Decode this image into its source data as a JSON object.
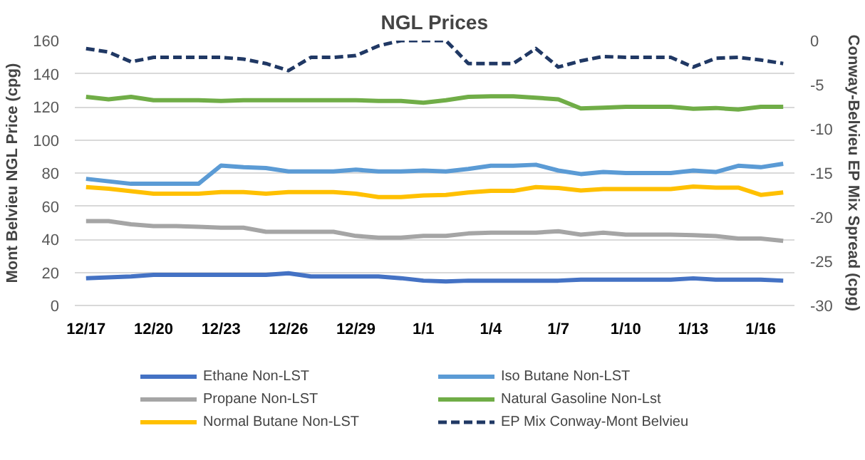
{
  "chart_data": {
    "type": "line",
    "title": "NGL Prices",
    "ylabel": "Mont Belvieu NGL Price (cpg)",
    "y2label": "Conway-Belvieu EP Mix Spread (cpg)",
    "categories": [
      "12/17",
      null,
      null,
      "12/20",
      null,
      null,
      "12/23",
      null,
      null,
      "12/26",
      null,
      null,
      "12/29",
      null,
      null,
      "1/1",
      null,
      null,
      "1/4",
      null,
      null,
      "1/7",
      null,
      null,
      "1/10",
      null,
      null,
      "1/13",
      null,
      null,
      "1/16",
      null
    ],
    "ylim": [
      0,
      160
    ],
    "yticks": [
      0,
      20,
      40,
      60,
      80,
      100,
      120,
      140,
      160
    ],
    "y2lim": [
      -30,
      0
    ],
    "y2ticks": [
      -30,
      -25,
      -20,
      -15,
      -10,
      -5,
      0
    ],
    "grid": "y",
    "legend": "bottom",
    "line_style": "solid",
    "marker": "none",
    "series": [
      {
        "name": "Ethane Non-LST",
        "color": "#4472c4",
        "values": [
          16.5,
          17,
          17.5,
          18.5,
          18.5,
          18.5,
          18.5,
          18.5,
          18.5,
          19.5,
          17.5,
          17.5,
          17.5,
          17.5,
          16.5,
          15,
          14.5,
          15,
          15,
          15,
          15,
          15,
          15.6,
          15.6,
          15.6,
          15.6,
          15.6,
          16.4,
          15.6,
          15.6,
          15.6,
          15
        ]
      },
      {
        "name": "Propane Non-LST",
        "color": "#a5a5a5",
        "values": [
          51,
          51,
          49,
          48,
          48,
          47.5,
          47,
          47,
          44.5,
          44.5,
          44.5,
          44.5,
          42,
          41,
          41,
          42,
          42,
          43.5,
          44,
          44,
          44,
          44.8,
          42.8,
          44,
          42.8,
          42.8,
          42.8,
          42.5,
          41.9,
          40.4,
          40.4,
          39
        ]
      },
      {
        "name": "Normal Butane Non-LST",
        "color": "#ffc000",
        "values": [
          71.5,
          70.5,
          69,
          67.5,
          67.5,
          67.5,
          68.5,
          68.5,
          67.5,
          68.5,
          68.5,
          68.5,
          67.5,
          65.5,
          65.5,
          66.5,
          66.8,
          68.3,
          69.2,
          69.2,
          71.5,
          71,
          69.5,
          70.3,
          70.3,
          70.3,
          70.3,
          71.8,
          71.2,
          71.2,
          66.8,
          68.3
        ]
      },
      {
        "name": "Iso Butane Non-LST",
        "color": "#5b9bd5",
        "values": [
          76.5,
          75,
          73.5,
          73.5,
          73.5,
          73.5,
          84.5,
          83.5,
          83,
          81,
          81,
          81,
          82,
          81,
          81,
          81.5,
          81,
          82.5,
          84.4,
          84.4,
          85,
          81.5,
          79.4,
          80.6,
          80,
          80,
          80,
          81.5,
          80.6,
          84.4,
          83.5,
          85.6
        ]
      },
      {
        "name": "Natural Gasoline Non-Lst",
        "color": "#70ad47",
        "values": [
          126,
          124.5,
          126,
          124,
          124,
          124,
          123.5,
          124,
          124,
          124,
          124,
          124,
          124,
          123.5,
          123.5,
          122.5,
          124,
          126,
          126.3,
          126.3,
          125.5,
          124.5,
          119,
          119.5,
          120,
          120,
          120,
          118.8,
          119.3,
          118.4,
          120,
          120
        ]
      },
      {
        "name": "EP Mix Conway-Mont Belvieu",
        "color": "#203864",
        "axis": "y2",
        "line_style": "dashed",
        "values": [
          -0.9,
          -1.3,
          -2.4,
          -1.9,
          -1.9,
          -1.9,
          -1.9,
          -2.1,
          -2.6,
          -3.4,
          -1.9,
          -1.9,
          -1.7,
          -0.6,
          0,
          0,
          0,
          -2.6,
          -2.6,
          -2.6,
          -0.9,
          -3.0,
          -2.3,
          -1.8,
          -1.9,
          -1.9,
          -1.9,
          -3.0,
          -2,
          -1.9,
          -2.2,
          -2.6
        ]
      }
    ]
  }
}
